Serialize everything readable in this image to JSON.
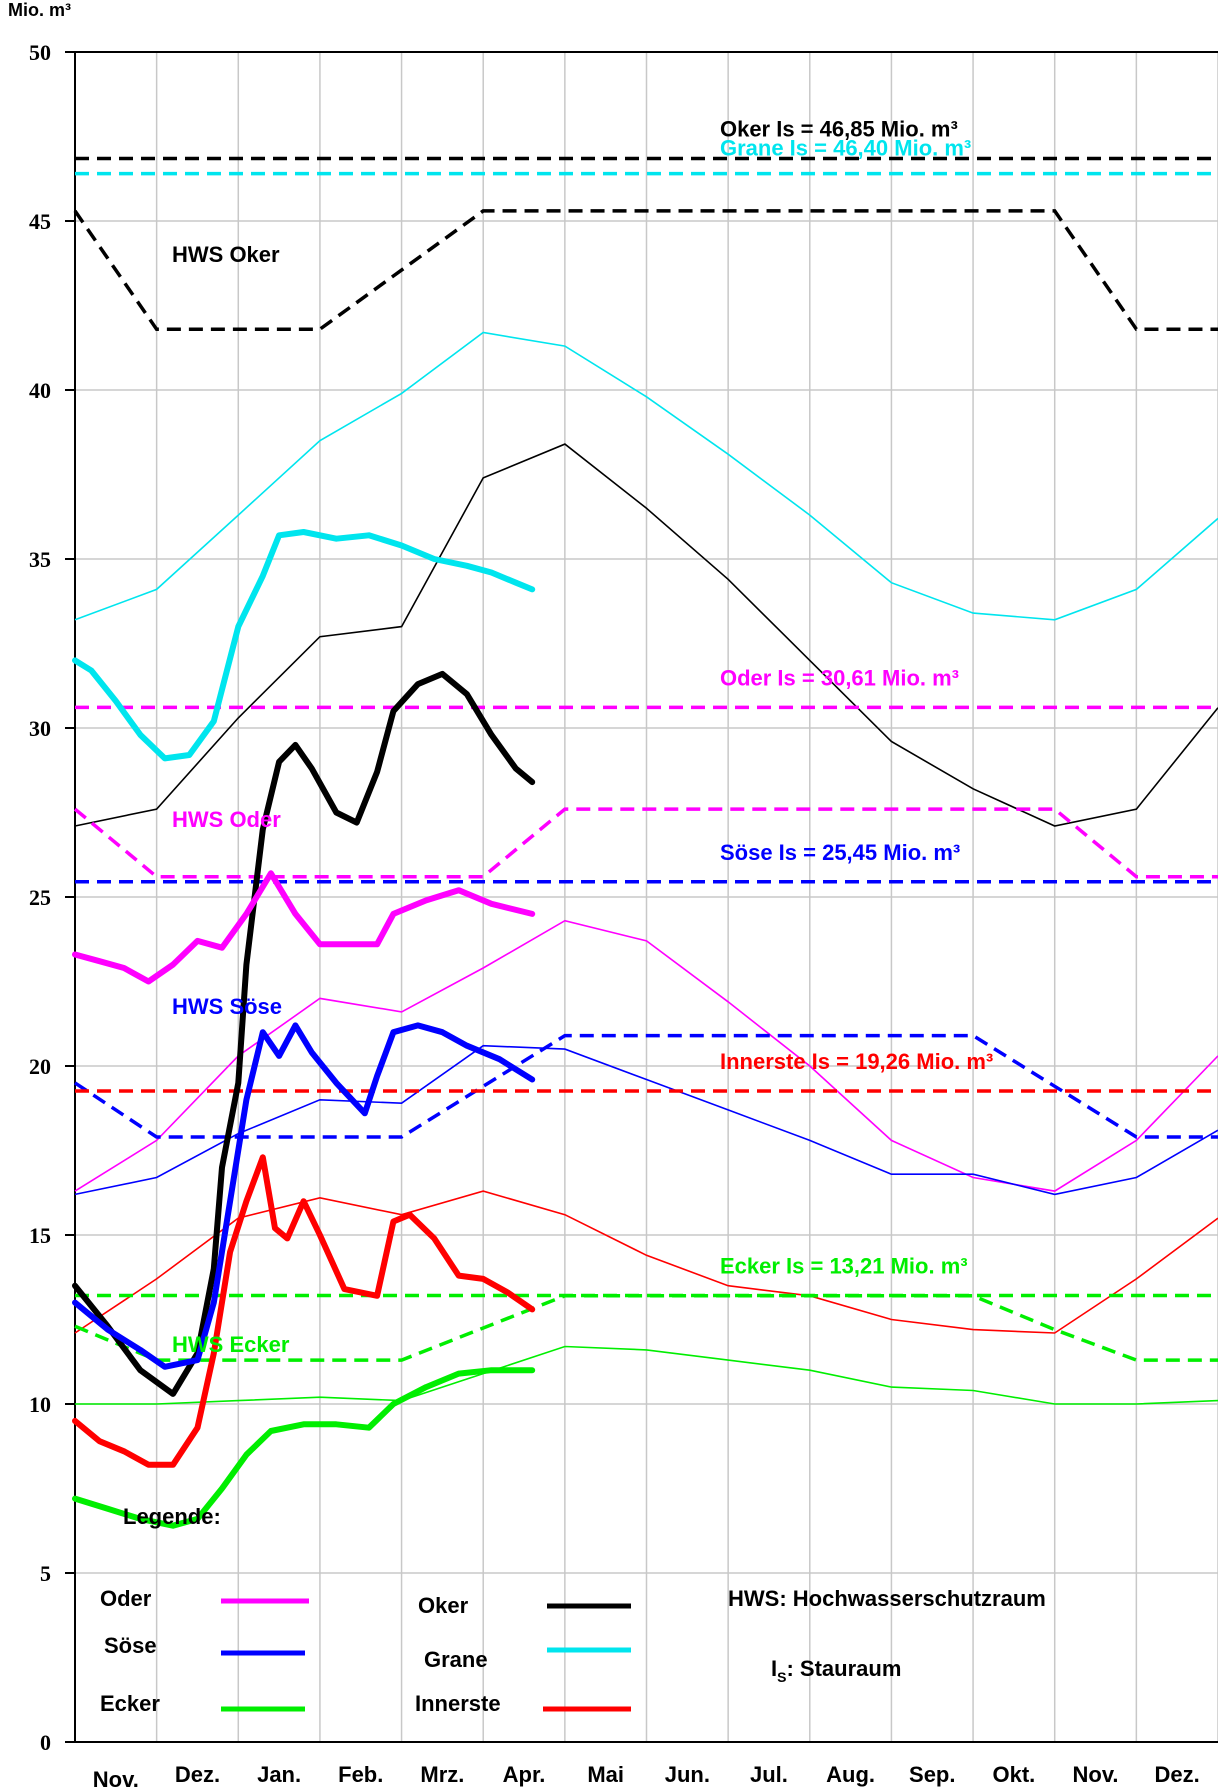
{
  "chart_data": {
    "type": "line",
    "ylabel": "Mio. m³",
    "ylim": [
      0,
      50
    ],
    "y_ticks": [
      "0",
      "5",
      "10",
      "15",
      "20",
      "25",
      "30",
      "35",
      "40",
      "45",
      "50"
    ],
    "months": [
      "Nov.",
      "Dez.",
      "Jan.",
      "Feb.",
      "Mrz.",
      "Apr.",
      "Mai",
      "Jun.",
      "Jul.",
      "Aug.",
      "Sep.",
      "Okt.",
      "Nov.",
      "Dez."
    ],
    "grid": true,
    "thin_series": [
      {
        "key": "grane",
        "color": "#00e5ee",
        "values": [
          33.2,
          34.1,
          36.3,
          38.5,
          39.9,
          41.7,
          41.3,
          39.8,
          38.1,
          36.3,
          34.3,
          33.4,
          33.2,
          34.1,
          36.2
        ]
      },
      {
        "key": "oker",
        "color": "#000000",
        "values": [
          27.1,
          27.6,
          30.3,
          32.7,
          33.0,
          37.4,
          38.4,
          36.5,
          34.4,
          32.0,
          29.6,
          28.2,
          27.1,
          27.6,
          30.6
        ]
      },
      {
        "key": "oder",
        "color": "#ff00ff",
        "values": [
          16.3,
          17.8,
          20.3,
          22.0,
          21.6,
          22.9,
          24.3,
          23.7,
          21.9,
          20.0,
          17.8,
          16.7,
          16.3,
          17.8,
          20.3
        ]
      },
      {
        "key": "soese",
        "color": "#0000ff",
        "values": [
          16.2,
          16.7,
          18.0,
          19.0,
          18.9,
          20.6,
          20.5,
          19.6,
          18.7,
          17.8,
          16.8,
          16.8,
          16.2,
          16.7,
          18.1
        ]
      },
      {
        "key": "innerste",
        "color": "#ff0000",
        "values": [
          12.1,
          13.7,
          15.5,
          16.1,
          15.6,
          16.3,
          15.6,
          14.4,
          13.5,
          13.2,
          12.5,
          12.2,
          12.1,
          13.7,
          15.5
        ]
      },
      {
        "key": "ecker",
        "color": "#00ee00",
        "values": [
          10.0,
          10.0,
          10.1,
          10.2,
          10.1,
          10.9,
          11.7,
          11.6,
          11.3,
          11.0,
          10.5,
          10.4,
          10.0,
          10.0,
          10.1
        ]
      }
    ],
    "hws_series": [
      {
        "key": "hws_oker",
        "color": "#000000",
        "points": [
          [
            0,
            45.3
          ],
          [
            1,
            41.8
          ],
          [
            3,
            41.8
          ],
          [
            5,
            45.3
          ],
          [
            12,
            45.3
          ],
          [
            13,
            41.8
          ],
          [
            14,
            41.8
          ]
        ]
      },
      {
        "key": "hws_oder",
        "color": "#ff00ff",
        "points": [
          [
            0,
            27.6
          ],
          [
            1,
            25.6
          ],
          [
            5,
            25.6
          ],
          [
            6,
            27.6
          ],
          [
            12,
            27.6
          ],
          [
            13,
            25.6
          ],
          [
            14,
            25.6
          ]
        ]
      },
      {
        "key": "hws_soese",
        "color": "#0000ff",
        "points": [
          [
            0,
            19.5
          ],
          [
            1,
            17.9
          ],
          [
            4,
            17.9
          ],
          [
            6,
            20.9
          ],
          [
            11,
            20.9
          ],
          [
            13,
            17.9
          ],
          [
            14,
            17.9
          ]
        ]
      },
      {
        "key": "hws_ecker",
        "color": "#00ee00",
        "points": [
          [
            0,
            12.3
          ],
          [
            1,
            11.3
          ],
          [
            4,
            11.3
          ],
          [
            6,
            13.2
          ],
          [
            11,
            13.2
          ],
          [
            12,
            12.2
          ],
          [
            13,
            11.3
          ],
          [
            14,
            11.3
          ]
        ]
      }
    ],
    "is_lines": [
      {
        "key": "oker_is",
        "color": "#000000",
        "value": 46.85,
        "label": "Oker Is = 46,85 Mio. m³"
      },
      {
        "key": "grane_is",
        "color": "#00e5ee",
        "value": 46.4,
        "label": "Grane Is = 46,40 Mio. m³"
      },
      {
        "key": "oder_is",
        "color": "#ff00ff",
        "value": 30.61,
        "label": "Oder Is = 30,61 Mio. m³"
      },
      {
        "key": "soese_is",
        "color": "#0000ff",
        "value": 25.45,
        "label": "Söse Is = 25,45 Mio. m³"
      },
      {
        "key": "innerste_is",
        "color": "#ff0000",
        "value": 19.26,
        "label": "Innerste Is = 19,26 Mio. m³"
      },
      {
        "key": "ecker_is",
        "color": "#00ee00",
        "value": 13.21,
        "label": "Ecker Is = 13,21 Mio. m³"
      }
    ],
    "actual_series": [
      {
        "key": "grane_actual",
        "color": "#00e5ee",
        "points": [
          [
            0,
            32.0
          ],
          [
            0.2,
            31.7
          ],
          [
            0.5,
            30.8
          ],
          [
            0.8,
            29.8
          ],
          [
            1.1,
            29.1
          ],
          [
            1.4,
            29.2
          ],
          [
            1.7,
            30.2
          ],
          [
            2.0,
            33.0
          ],
          [
            2.3,
            34.5
          ],
          [
            2.5,
            35.7
          ],
          [
            2.8,
            35.8
          ],
          [
            3.2,
            35.6
          ],
          [
            3.6,
            35.7
          ],
          [
            4.0,
            35.4
          ],
          [
            4.4,
            35.0
          ],
          [
            4.8,
            34.8
          ],
          [
            5.1,
            34.6
          ],
          [
            5.4,
            34.3
          ],
          [
            5.6,
            34.1
          ]
        ]
      },
      {
        "key": "oker_actual",
        "color": "#000000",
        "points": [
          [
            0,
            13.5
          ],
          [
            0.4,
            12.3
          ],
          [
            0.8,
            11.0
          ],
          [
            1.2,
            10.3
          ],
          [
            1.5,
            11.5
          ],
          [
            1.7,
            14.0
          ],
          [
            1.8,
            17.0
          ],
          [
            2.0,
            19.5
          ],
          [
            2.1,
            23.0
          ],
          [
            2.3,
            27.0
          ],
          [
            2.5,
            29.0
          ],
          [
            2.7,
            29.5
          ],
          [
            2.9,
            28.8
          ],
          [
            3.2,
            27.5
          ],
          [
            3.45,
            27.2
          ],
          [
            3.7,
            28.7
          ],
          [
            3.9,
            30.5
          ],
          [
            4.2,
            31.3
          ],
          [
            4.5,
            31.6
          ],
          [
            4.8,
            31.0
          ],
          [
            5.1,
            29.8
          ],
          [
            5.4,
            28.8
          ],
          [
            5.6,
            28.4
          ]
        ]
      },
      {
        "key": "oder_actual",
        "color": "#ff00ff",
        "points": [
          [
            0,
            23.3
          ],
          [
            0.3,
            23.1
          ],
          [
            0.6,
            22.9
          ],
          [
            0.9,
            22.5
          ],
          [
            1.2,
            23.0
          ],
          [
            1.5,
            23.7
          ],
          [
            1.8,
            23.5
          ],
          [
            2.1,
            24.5
          ],
          [
            2.4,
            25.7
          ],
          [
            2.7,
            24.5
          ],
          [
            3.0,
            23.6
          ],
          [
            3.4,
            23.6
          ],
          [
            3.7,
            23.6
          ],
          [
            3.9,
            24.5
          ],
          [
            4.3,
            24.9
          ],
          [
            4.7,
            25.2
          ],
          [
            5.1,
            24.8
          ],
          [
            5.6,
            24.5
          ]
        ]
      },
      {
        "key": "soese_actual",
        "color": "#0000ff",
        "points": [
          [
            0,
            13.0
          ],
          [
            0.4,
            12.2
          ],
          [
            0.8,
            11.6
          ],
          [
            1.1,
            11.1
          ],
          [
            1.5,
            11.3
          ],
          [
            1.7,
            13.0
          ],
          [
            1.9,
            16.0
          ],
          [
            2.1,
            19.0
          ],
          [
            2.3,
            21.0
          ],
          [
            2.5,
            20.3
          ],
          [
            2.7,
            21.2
          ],
          [
            2.9,
            20.4
          ],
          [
            3.2,
            19.5
          ],
          [
            3.55,
            18.6
          ],
          [
            3.7,
            19.7
          ],
          [
            3.9,
            21.0
          ],
          [
            4.2,
            21.2
          ],
          [
            4.5,
            21.0
          ],
          [
            4.8,
            20.6
          ],
          [
            5.2,
            20.2
          ],
          [
            5.6,
            19.6
          ]
        ]
      },
      {
        "key": "innerste_actual",
        "color": "#ff0000",
        "points": [
          [
            0,
            9.5
          ],
          [
            0.3,
            8.9
          ],
          [
            0.6,
            8.6
          ],
          [
            0.9,
            8.2
          ],
          [
            1.2,
            8.2
          ],
          [
            1.5,
            9.3
          ],
          [
            1.7,
            11.5
          ],
          [
            1.9,
            14.5
          ],
          [
            2.1,
            16.0
          ],
          [
            2.3,
            17.3
          ],
          [
            2.45,
            15.2
          ],
          [
            2.6,
            14.9
          ],
          [
            2.8,
            16.0
          ],
          [
            3.0,
            15.0
          ],
          [
            3.3,
            13.4
          ],
          [
            3.7,
            13.2
          ],
          [
            3.9,
            15.4
          ],
          [
            4.1,
            15.6
          ],
          [
            4.4,
            14.9
          ],
          [
            4.7,
            13.8
          ],
          [
            5.0,
            13.7
          ],
          [
            5.3,
            13.3
          ],
          [
            5.6,
            12.8
          ]
        ]
      },
      {
        "key": "ecker_actual",
        "color": "#00ee00",
        "points": [
          [
            0,
            7.2
          ],
          [
            0.4,
            6.9
          ],
          [
            0.8,
            6.6
          ],
          [
            1.2,
            6.4
          ],
          [
            1.5,
            6.6
          ],
          [
            1.8,
            7.5
          ],
          [
            2.1,
            8.5
          ],
          [
            2.4,
            9.2
          ],
          [
            2.8,
            9.4
          ],
          [
            3.2,
            9.4
          ],
          [
            3.6,
            9.3
          ],
          [
            3.9,
            10.0
          ],
          [
            4.3,
            10.5
          ],
          [
            4.7,
            10.9
          ],
          [
            5.1,
            11.0
          ],
          [
            5.6,
            11.0
          ]
        ]
      }
    ],
    "annotations": {
      "hws_oker": "HWS Oker",
      "hws_oder": "HWS Oder",
      "hws_soese": "HWS Söse",
      "hws_ecker": "HWS Ecker"
    },
    "legend": {
      "title": "Legende:",
      "items": [
        {
          "label": "Oder",
          "color": "#ff00ff"
        },
        {
          "label": "Söse",
          "color": "#0000ff"
        },
        {
          "label": "Ecker",
          "color": "#00ee00"
        },
        {
          "label": "Oker",
          "color": "#000000"
        },
        {
          "label": "Grane",
          "color": "#00e5ee"
        },
        {
          "label": "Innerste",
          "color": "#ff0000"
        }
      ],
      "hws_note": "HWS: Hochwasserschutzraum",
      "is_note_prefix": "I",
      "is_note_sub": "S",
      "is_note_suffix": ": Stauraum"
    }
  }
}
